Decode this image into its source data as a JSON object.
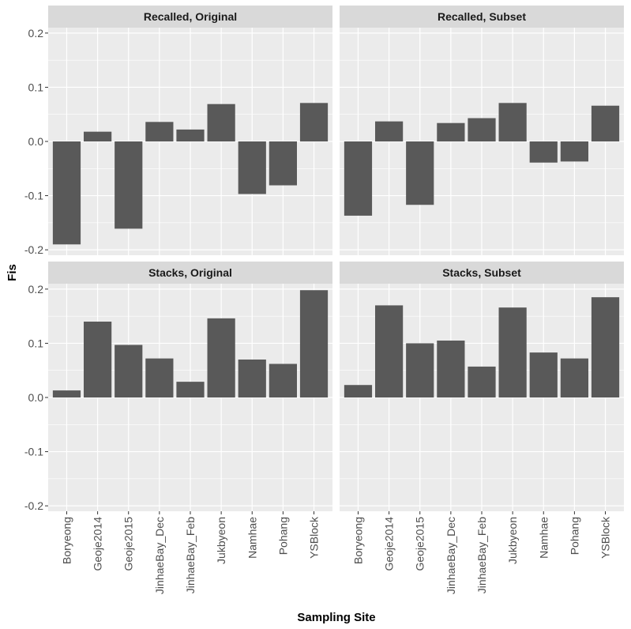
{
  "chart_data": {
    "type": "bar",
    "xlabel": "Sampling Site",
    "ylabel": "Fis",
    "ylim": [
      -0.21,
      0.21
    ],
    "yticks": [
      -0.2,
      -0.1,
      0.0,
      0.1,
      0.2
    ],
    "ytick_labels": [
      "-0.2",
      "-0.1",
      "0.0",
      "0.1",
      "0.2"
    ],
    "categories": [
      "Boryeong",
      "Geoje2014",
      "Geoje2015",
      "JinhaeBay_Dec",
      "JinhaeBay_Feb",
      "Jukbyeon",
      "Namhae",
      "Pohang",
      "YSBlock"
    ],
    "bar_color": "#595959",
    "panel_background": "#ebebeb",
    "strip_background": "#d9d9d9",
    "grid": true,
    "panels": [
      {
        "title": "Recalled, Original",
        "values": [
          -0.19,
          0.018,
          -0.161,
          0.036,
          0.022,
          0.069,
          -0.097,
          -0.081,
          0.071
        ]
      },
      {
        "title": "Recalled, Subset",
        "values": [
          -0.137,
          0.037,
          -0.117,
          0.034,
          0.043,
          0.071,
          -0.039,
          -0.037,
          0.066
        ]
      },
      {
        "title": "Stacks, Original",
        "values": [
          0.013,
          0.14,
          0.097,
          0.072,
          0.029,
          0.146,
          0.07,
          0.062,
          0.198
        ]
      },
      {
        "title": "Stacks, Subset",
        "values": [
          0.023,
          0.17,
          0.1,
          0.105,
          0.057,
          0.166,
          0.083,
          0.072,
          0.185
        ]
      }
    ]
  }
}
